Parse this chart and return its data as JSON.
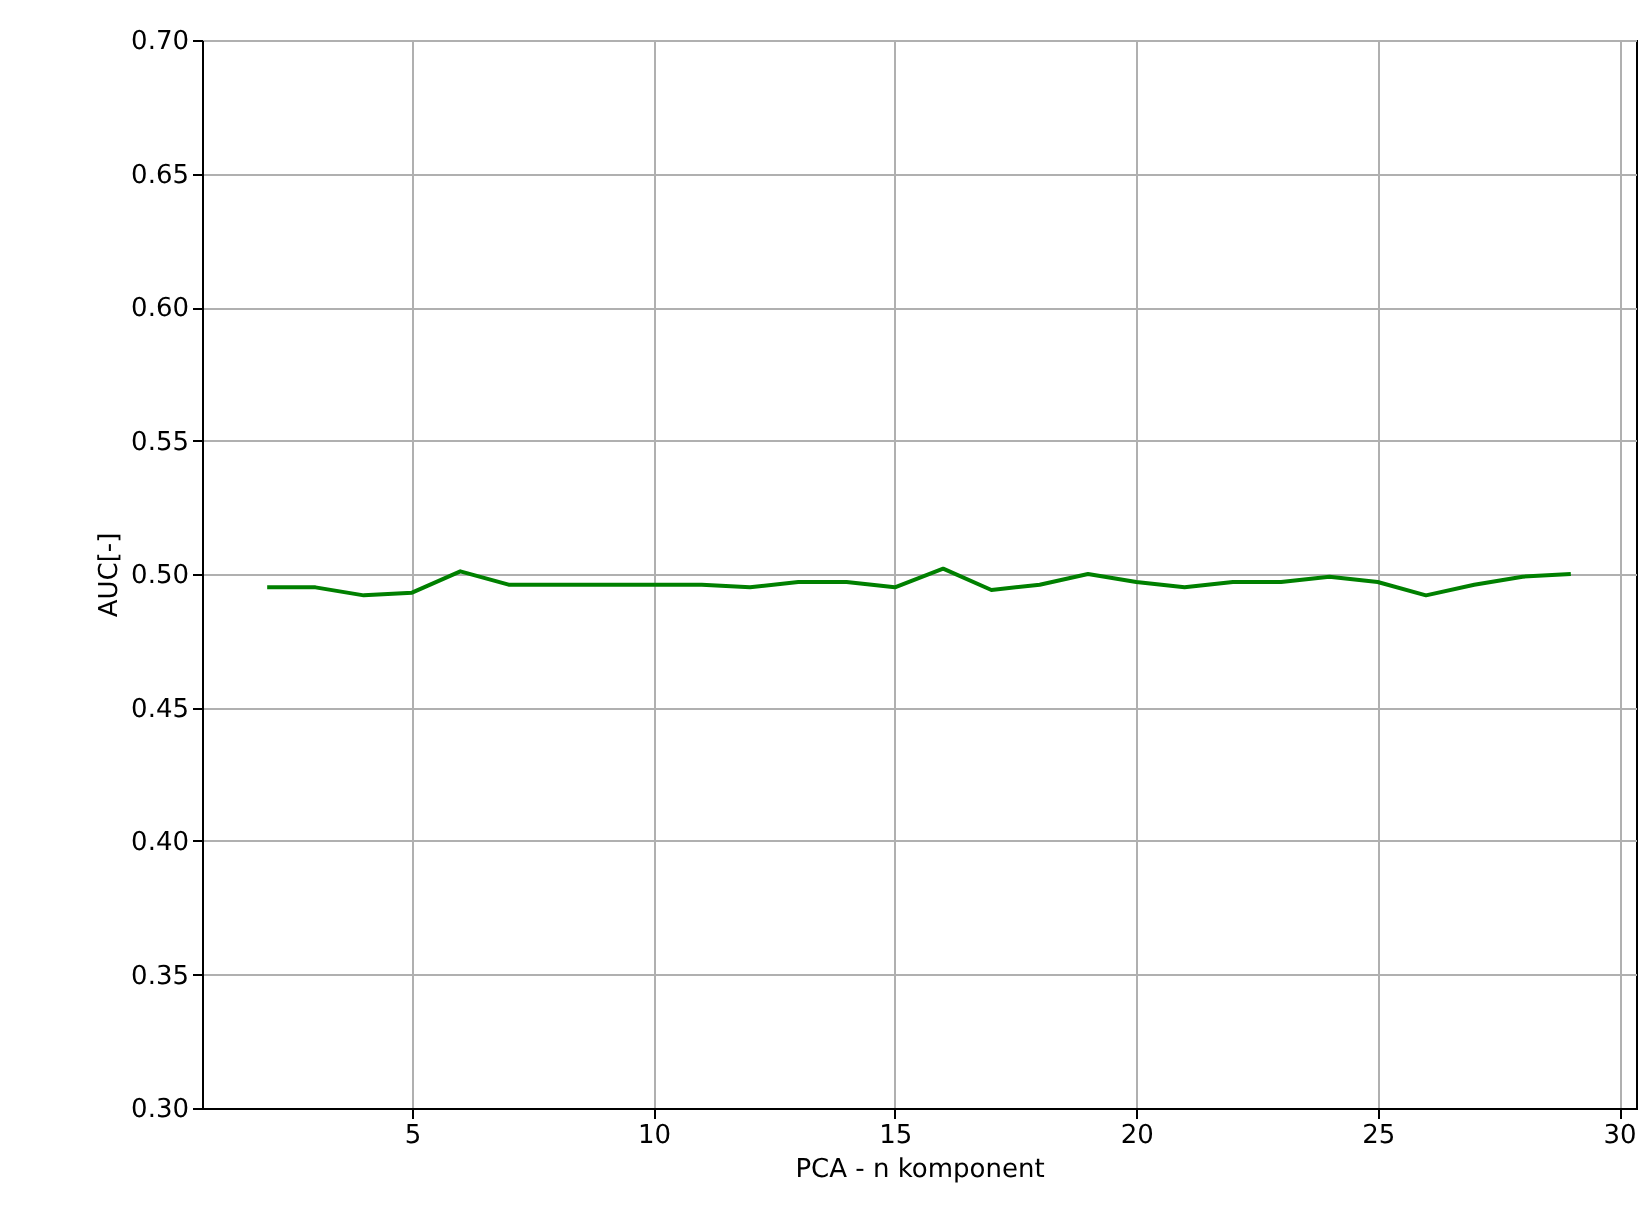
{
  "chart_data": {
    "type": "line",
    "xlabel": "PCA - n komponent",
    "ylabel": "AUC[-]",
    "x": [
      2,
      3,
      4,
      5,
      6,
      7,
      8,
      9,
      10,
      11,
      12,
      13,
      14,
      15,
      16,
      17,
      18,
      19,
      20,
      21,
      22,
      23,
      24,
      25,
      26,
      27,
      28,
      29
    ],
    "series": [
      {
        "color": "#008000",
        "values": [
          0.495,
          0.495,
          0.492,
          0.493,
          0.501,
          0.496,
          0.496,
          0.496,
          0.496,
          0.496,
          0.495,
          0.497,
          0.497,
          0.495,
          0.502,
          0.494,
          0.496,
          0.5,
          0.497,
          0.495,
          0.497,
          0.497,
          0.499,
          0.497,
          0.492,
          0.496,
          0.499,
          0.5
        ]
      }
    ],
    "xlim": [
      0.65,
      30.35
    ],
    "ylim": [
      0.3,
      0.7
    ],
    "xticks": [
      5,
      10,
      15,
      20,
      25,
      30
    ],
    "yticks": [
      {
        "value": 0.3,
        "label": "0.30"
      },
      {
        "value": 0.35,
        "label": "0.35"
      },
      {
        "value": 0.4,
        "label": "0.40"
      },
      {
        "value": 0.45,
        "label": "0.45"
      },
      {
        "value": 0.5,
        "label": "0.50"
      },
      {
        "value": 0.55,
        "label": "0.55"
      },
      {
        "value": 0.6,
        "label": "0.60"
      },
      {
        "value": 0.65,
        "label": "0.65"
      },
      {
        "value": 0.7,
        "label": "0.70"
      }
    ],
    "grid": true,
    "marker": "none",
    "line_style": "solid"
  }
}
